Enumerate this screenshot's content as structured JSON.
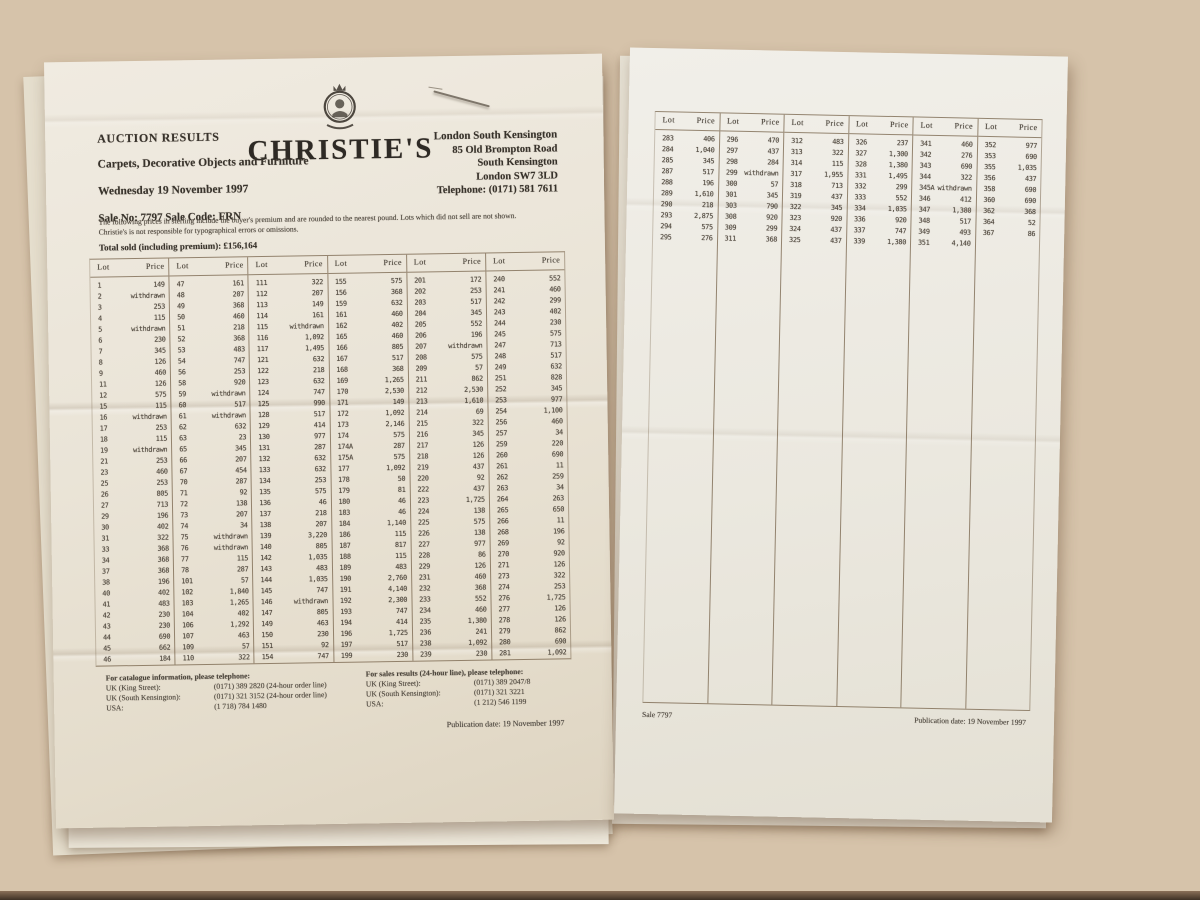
{
  "colors": {
    "background": "#d6c3aa",
    "paper": "#ece6da",
    "ink": "#3a342d",
    "table_line": "#7d6a52",
    "shadow": "rgba(88,60,36,0.42)"
  },
  "table_header": {
    "lot": "Lot",
    "price": "Price"
  },
  "left_page": {
    "header": {
      "auction_results": "AUCTION RESULTS",
      "sale_title": "Carpets, Decorative Objects and Furniture",
      "sale_date": "Wednesday 19 November 1997",
      "sale_no_line": "Sale No:  7797   Sale Code:  FRN",
      "brand": "CHRISTIE'S",
      "location": "London South Kensington",
      "address_lines": [
        "85 Old Brompton Road",
        "South Kensington",
        "London SW7 3LD",
        "Telephone: (0171) 581 7611"
      ]
    },
    "note_lines": [
      "The following prices in sterling include the buyer's premium and are rounded to the nearest pound.  Lots which did not sell are not shown.",
      "Christie's is not responsible for typographical errors or omissions."
    ],
    "total_line": "Total sold (including premium): £156,164",
    "table": {
      "columns": [
        [
          [
            "1",
            "149"
          ],
          [
            "2",
            "withdrawn"
          ],
          [
            "3",
            "253"
          ],
          [
            "4",
            "115"
          ],
          [
            "5",
            "withdrawn"
          ],
          [
            "6",
            "230"
          ],
          [
            "7",
            "345"
          ],
          [
            "8",
            "126"
          ],
          [
            "9",
            "460"
          ],
          [
            "11",
            "126"
          ],
          [
            "12",
            "575"
          ],
          [
            "15",
            "115"
          ],
          [
            "16",
            "withdrawn"
          ],
          [
            "17",
            "253"
          ],
          [
            "18",
            "115"
          ],
          [
            "19",
            "withdrawn"
          ],
          [
            "21",
            "253"
          ],
          [
            "23",
            "460"
          ],
          [
            "25",
            "253"
          ],
          [
            "26",
            "805"
          ],
          [
            "27",
            "713"
          ],
          [
            "29",
            "196"
          ],
          [
            "30",
            "402"
          ],
          [
            "31",
            "322"
          ],
          [
            "33",
            "368"
          ],
          [
            "34",
            "368"
          ],
          [
            "37",
            "368"
          ],
          [
            "38",
            "196"
          ],
          [
            "40",
            "402"
          ],
          [
            "41",
            "483"
          ],
          [
            "42",
            "230"
          ],
          [
            "43",
            "230"
          ],
          [
            "44",
            "690"
          ],
          [
            "45",
            "662"
          ],
          [
            "46",
            "184"
          ]
        ],
        [
          [
            "47",
            "161"
          ],
          [
            "48",
            "207"
          ],
          [
            "49",
            "368"
          ],
          [
            "50",
            "460"
          ],
          [
            "51",
            "218"
          ],
          [
            "52",
            "368"
          ],
          [
            "53",
            "483"
          ],
          [
            "54",
            "747"
          ],
          [
            "56",
            "253"
          ],
          [
            "58",
            "920"
          ],
          [
            "59",
            "withdrawn"
          ],
          [
            "60",
            "517"
          ],
          [
            "61",
            "withdrawn"
          ],
          [
            "62",
            "632"
          ],
          [
            "63",
            "23"
          ],
          [
            "65",
            "345"
          ],
          [
            "66",
            "207"
          ],
          [
            "67",
            "454"
          ],
          [
            "70",
            "287"
          ],
          [
            "71",
            "92"
          ],
          [
            "72",
            "138"
          ],
          [
            "73",
            "207"
          ],
          [
            "74",
            "34"
          ],
          [
            "75",
            "withdrawn"
          ],
          [
            "76",
            "withdrawn"
          ],
          [
            "77",
            "115"
          ],
          [
            "78",
            "287"
          ],
          [
            "101",
            "57"
          ],
          [
            "102",
            "1,840"
          ],
          [
            "103",
            "1,265"
          ],
          [
            "104",
            "402"
          ],
          [
            "106",
            "1,292"
          ],
          [
            "107",
            "463"
          ],
          [
            "109",
            "57"
          ],
          [
            "110",
            "322"
          ]
        ],
        [
          [
            "111",
            "322"
          ],
          [
            "112",
            "207"
          ],
          [
            "113",
            "149"
          ],
          [
            "114",
            "161"
          ],
          [
            "115",
            "withdrawn"
          ],
          [
            "116",
            "1,092"
          ],
          [
            "117",
            "1,495"
          ],
          [
            "121",
            "632"
          ],
          [
            "122",
            "218"
          ],
          [
            "123",
            "632"
          ],
          [
            "124",
            "747"
          ],
          [
            "125",
            "990"
          ],
          [
            "128",
            "517"
          ],
          [
            "129",
            "414"
          ],
          [
            "130",
            "977"
          ],
          [
            "131",
            "287"
          ],
          [
            "132",
            "632"
          ],
          [
            "133",
            "632"
          ],
          [
            "134",
            "253"
          ],
          [
            "135",
            "575"
          ],
          [
            "136",
            "46"
          ],
          [
            "137",
            "218"
          ],
          [
            "138",
            "207"
          ],
          [
            "139",
            "3,220"
          ],
          [
            "140",
            "805"
          ],
          [
            "142",
            "1,035"
          ],
          [
            "143",
            "483"
          ],
          [
            "144",
            "1,035"
          ],
          [
            "145",
            "747"
          ],
          [
            "146",
            "withdrawn"
          ],
          [
            "147",
            "805"
          ],
          [
            "149",
            "463"
          ],
          [
            "150",
            "230"
          ],
          [
            "151",
            "92"
          ],
          [
            "154",
            "747"
          ]
        ],
        [
          [
            "155",
            "575"
          ],
          [
            "156",
            "368"
          ],
          [
            "159",
            "632"
          ],
          [
            "161",
            "460"
          ],
          [
            "162",
            "402"
          ],
          [
            "165",
            "460"
          ],
          [
            "166",
            "805"
          ],
          [
            "167",
            "517"
          ],
          [
            "168",
            "368"
          ],
          [
            "169",
            "1,265"
          ],
          [
            "170",
            "2,530"
          ],
          [
            "171",
            "149"
          ],
          [
            "172",
            "1,092"
          ],
          [
            "173",
            "2,146"
          ],
          [
            "174",
            "575"
          ],
          [
            "174A",
            "287"
          ],
          [
            "175A",
            "575"
          ],
          [
            "177",
            "1,092"
          ],
          [
            "178",
            "50"
          ],
          [
            "179",
            "81"
          ],
          [
            "180",
            "46"
          ],
          [
            "183",
            "46"
          ],
          [
            "184",
            "1,140"
          ],
          [
            "186",
            "115"
          ],
          [
            "187",
            "817"
          ],
          [
            "188",
            "115"
          ],
          [
            "189",
            "483"
          ],
          [
            "190",
            "2,760"
          ],
          [
            "191",
            "4,140"
          ],
          [
            "192",
            "2,300"
          ],
          [
            "193",
            "747"
          ],
          [
            "194",
            "414"
          ],
          [
            "196",
            "1,725"
          ],
          [
            "197",
            "517"
          ],
          [
            "199",
            "230"
          ]
        ],
        [
          [
            "201",
            "172"
          ],
          [
            "202",
            "253"
          ],
          [
            "203",
            "517"
          ],
          [
            "204",
            "345"
          ],
          [
            "205",
            "552"
          ],
          [
            "206",
            "196"
          ],
          [
            "207",
            "withdrawn"
          ],
          [
            "208",
            "575"
          ],
          [
            "209",
            "57"
          ],
          [
            "211",
            "862"
          ],
          [
            "212",
            "2,530"
          ],
          [
            "213",
            "1,610"
          ],
          [
            "214",
            "69"
          ],
          [
            "215",
            "322"
          ],
          [
            "216",
            "345"
          ],
          [
            "217",
            "126"
          ],
          [
            "218",
            "126"
          ],
          [
            "219",
            "437"
          ],
          [
            "220",
            "92"
          ],
          [
            "222",
            "437"
          ],
          [
            "223",
            "1,725"
          ],
          [
            "224",
            "138"
          ],
          [
            "225",
            "575"
          ],
          [
            "226",
            "138"
          ],
          [
            "227",
            "977"
          ],
          [
            "228",
            "86"
          ],
          [
            "229",
            "126"
          ],
          [
            "231",
            "460"
          ],
          [
            "232",
            "368"
          ],
          [
            "233",
            "552"
          ],
          [
            "234",
            "460"
          ],
          [
            "235",
            "1,380"
          ],
          [
            "236",
            "241"
          ],
          [
            "238",
            "1,092"
          ],
          [
            "239",
            "230"
          ]
        ],
        [
          [
            "240",
            "552"
          ],
          [
            "241",
            "460"
          ],
          [
            "242",
            "299"
          ],
          [
            "243",
            "402"
          ],
          [
            "244",
            "230"
          ],
          [
            "245",
            "575"
          ],
          [
            "247",
            "713"
          ],
          [
            "248",
            "517"
          ],
          [
            "249",
            "632"
          ],
          [
            "251",
            "828"
          ],
          [
            "252",
            "345"
          ],
          [
            "253",
            "977"
          ],
          [
            "254",
            "1,100"
          ],
          [
            "256",
            "460"
          ],
          [
            "257",
            "34"
          ],
          [
            "259",
            "220"
          ],
          [
            "260",
            "690"
          ],
          [
            "261",
            "11"
          ],
          [
            "262",
            "259"
          ],
          [
            "263",
            "34"
          ],
          [
            "264",
            "263"
          ],
          [
            "265",
            "650"
          ],
          [
            "266",
            "11"
          ],
          [
            "268",
            "196"
          ],
          [
            "269",
            "92"
          ],
          [
            "270",
            "920"
          ],
          [
            "271",
            "126"
          ],
          [
            "273",
            "322"
          ],
          [
            "274",
            "253"
          ],
          [
            "276",
            "1,725"
          ],
          [
            "277",
            "126"
          ],
          [
            "278",
            "126"
          ],
          [
            "279",
            "862"
          ],
          [
            "280",
            "690"
          ],
          [
            "281",
            "1,092"
          ]
        ]
      ]
    },
    "footer": {
      "catalogue": {
        "title": "For catalogue information, please telephone:",
        "rows": [
          {
            "label": "UK (King Street):",
            "value": "(0171) 389 2820 (24-hour order line)"
          },
          {
            "label": "UK (South Kensington):",
            "value": "(0171) 321 3152 (24-hour order line)"
          },
          {
            "label": "USA:",
            "value": "(1 718) 784 1480"
          }
        ]
      },
      "sales_results": {
        "title": "For sales results (24-hour line), please telephone:",
        "rows": [
          {
            "label": "UK (King Street):",
            "value": "(0171) 389 2047/8"
          },
          {
            "label": "UK (South Kensington):",
            "value": "(0171) 321 3221"
          },
          {
            "label": "USA:",
            "value": "(1 212) 546 1199"
          }
        ]
      },
      "publication": "Publication date: 19 November 1997"
    }
  },
  "right_page": {
    "table": {
      "columns": [
        [
          [
            "283",
            "406"
          ],
          [
            "284",
            "1,040"
          ],
          [
            "285",
            "345"
          ],
          [
            "287",
            "517"
          ],
          [
            "288",
            "196"
          ],
          [
            "289",
            "1,610"
          ],
          [
            "290",
            "218"
          ],
          [
            "293",
            "2,875"
          ],
          [
            "294",
            "575"
          ],
          [
            "295",
            "276"
          ]
        ],
        [
          [
            "296",
            "470"
          ],
          [
            "297",
            "437"
          ],
          [
            "298",
            "284"
          ],
          [
            "299",
            "withdrawn"
          ],
          [
            "300",
            "57"
          ],
          [
            "301",
            "345"
          ],
          [
            "303",
            "790"
          ],
          [
            "308",
            "920"
          ],
          [
            "309",
            "299"
          ],
          [
            "311",
            "368"
          ]
        ],
        [
          [
            "312",
            "483"
          ],
          [
            "313",
            "322"
          ],
          [
            "314",
            "115"
          ],
          [
            "317",
            "1,955"
          ],
          [
            "318",
            "713"
          ],
          [
            "319",
            "437"
          ],
          [
            "322",
            "345"
          ],
          [
            "323",
            "920"
          ],
          [
            "324",
            "437"
          ],
          [
            "325",
            "437"
          ]
        ],
        [
          [
            "326",
            "237"
          ],
          [
            "327",
            "1,300"
          ],
          [
            "328",
            "1,380"
          ],
          [
            "331",
            "1,495"
          ],
          [
            "332",
            "299"
          ],
          [
            "333",
            "552"
          ],
          [
            "334",
            "1,035"
          ],
          [
            "336",
            "920"
          ],
          [
            "337",
            "747"
          ],
          [
            "339",
            "1,380"
          ]
        ],
        [
          [
            "341",
            "460"
          ],
          [
            "342",
            "276"
          ],
          [
            "343",
            "690"
          ],
          [
            "344",
            "322"
          ],
          [
            "345A",
            "withdrawn"
          ],
          [
            "346",
            "412"
          ],
          [
            "347",
            "1,380"
          ],
          [
            "348",
            "517"
          ],
          [
            "349",
            "493"
          ],
          [
            "351",
            "4,140"
          ]
        ],
        [
          [
            "352",
            "977"
          ],
          [
            "353",
            "690"
          ],
          [
            "355",
            "1,035"
          ],
          [
            "356",
            "437"
          ],
          [
            "358",
            "690"
          ],
          [
            "360",
            "690"
          ],
          [
            "362",
            "368"
          ],
          [
            "364",
            "52"
          ],
          [
            "367",
            "86"
          ]
        ]
      ]
    },
    "footer": {
      "sale": "Sale 7797",
      "publication": "Publication date: 19 November 1997"
    }
  }
}
